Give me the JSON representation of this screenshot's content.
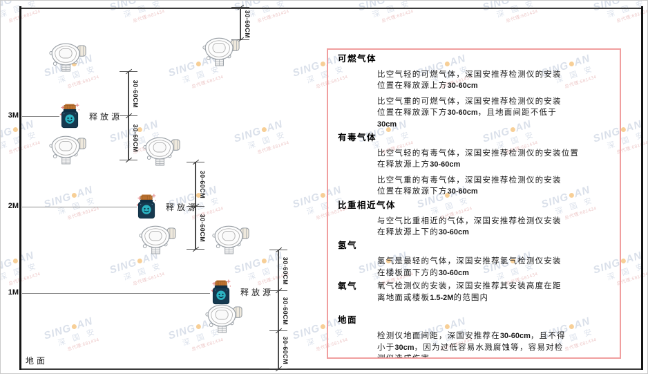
{
  "diagram": {
    "levels": [
      {
        "label": "3M"
      },
      {
        "label": "2M"
      },
      {
        "label": "1M"
      }
    ],
    "ground_label": "地面",
    "release_source_label": "释放源",
    "dimension_label": "30-60CM"
  },
  "panel": {
    "sections": [
      {
        "id": "combustible",
        "heading": "可燃气体",
        "inline": false,
        "paragraphs": [
          [
            "比空气轻的可燃气体，深国安推荐检测仪的安装",
            "位置在释放源上方30-60cm"
          ],
          [
            "比空气重的可燃气体，深国安推荐检测仪的安装",
            "位置在释放源下方30-60cm，且地面间距不低于",
            "30cm"
          ]
        ]
      },
      {
        "id": "toxic",
        "heading": "有毒气体",
        "inline": false,
        "paragraphs": [
          [
            "比空气轻的有毒气体，深国安推荐检测仪的安装位置",
            "在释放源上方30-60cm"
          ],
          [
            "比空气重的有毒气体，深国安推荐检测仪的安装",
            "位置在释放源下方30-60cm"
          ]
        ]
      },
      {
        "id": "similar-density",
        "heading": "比重相近气体",
        "inline": false,
        "paragraphs": [
          [
            "与空气比重相近的气体，深国安推荐检测仪安装",
            "在释放源上下的30-60cm"
          ]
        ]
      },
      {
        "id": "hydrogen",
        "heading": "氢气",
        "inline": false,
        "paragraphs": [
          [
            "氢气是最轻的气体，深国安推荐氢气检测仪安装",
            "在楼板面下方的30-60cm"
          ]
        ]
      },
      {
        "id": "oxygen",
        "heading": "氧气",
        "inline": true,
        "paragraphs": [
          [
            "氧气检测仪的安装，深国安推荐其安装高度在距",
            "离地面或楼板1.5-2M的范围内"
          ]
        ]
      },
      {
        "id": "ground",
        "heading": "地面",
        "inline": false,
        "paragraphs": [
          [
            "检测仪地面间距，深国安推荐在30-60cm，且不得",
            "小于30cm，因为过低容易水溅腐蚀等，容易对检",
            "测仪造成伤害"
          ]
        ]
      }
    ]
  },
  "watermark": {
    "brand_left": "SING",
    "brand_right": "AN",
    "cn": "深 国 安",
    "sub": "总代理:681434"
  },
  "colors": {
    "panel_border": "#f09e9e",
    "release_body": "#16394f",
    "release_lid": "#bf7330",
    "release_circle": "#2cb4c3",
    "sparkle": "#e58a8a",
    "detector_stroke": "#9aa0a6",
    "watermark_blue": "#b6c2d6"
  }
}
